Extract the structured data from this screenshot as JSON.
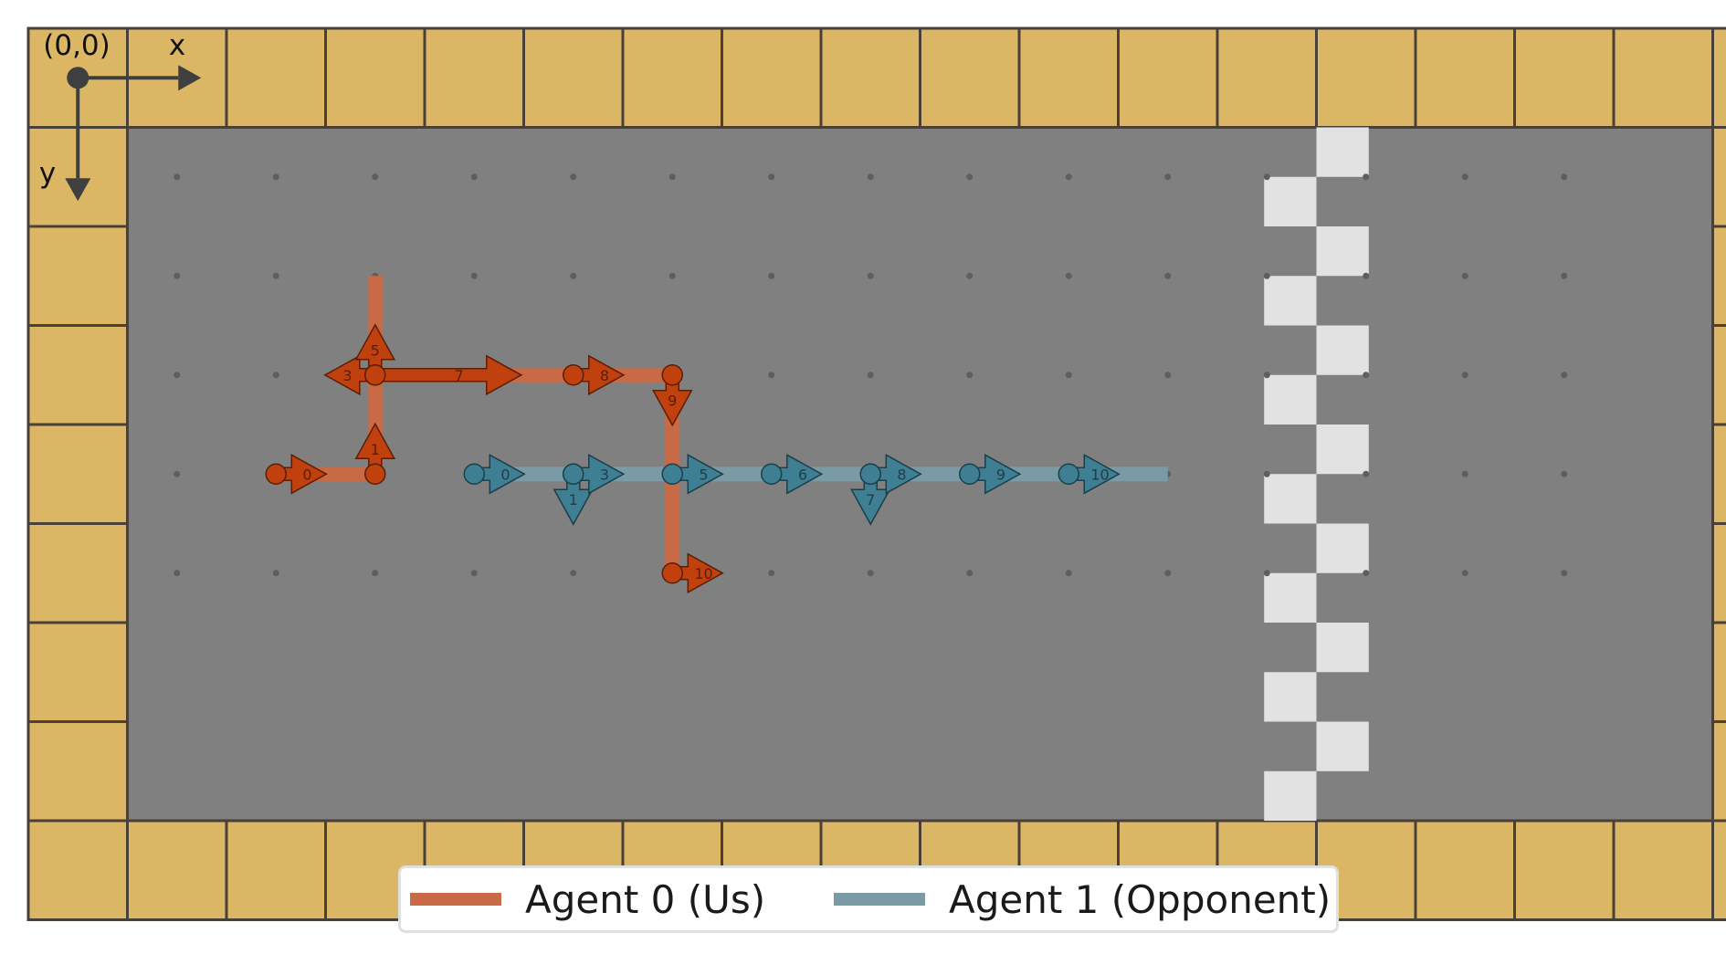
{
  "board": {
    "cols": 16,
    "rows": 7,
    "wall_color": "#dbb665",
    "floor_color": "#808080",
    "grid_line_color": "#4a4038",
    "dot_color": "#5e5e5e",
    "finish_color": "#e2e2e2",
    "finish_column": 12
  },
  "origin": {
    "label": "(0,0)",
    "x_label": "x",
    "y_label": "y"
  },
  "agents": [
    {
      "name": "Agent 0 (Us)",
      "line_color": "#c86a45",
      "marker_color": "#c0410d",
      "edge_color": "#5a1e06",
      "path": [
        [
          1,
          3
        ],
        [
          2,
          3
        ],
        [
          2,
          2
        ],
        [
          3,
          1.6
        ],
        [
          2,
          2
        ],
        [
          2,
          1
        ],
        [
          3,
          2
        ],
        [
          4,
          2
        ],
        [
          5,
          2
        ],
        [
          5,
          3
        ],
        [
          5,
          4
        ]
      ],
      "steps": [
        {
          "x": 1,
          "y": 3,
          "dir": "right",
          "label": "0"
        },
        {
          "x": 2,
          "y": 3,
          "dir": "up",
          "label": "1"
        },
        {
          "x": 2,
          "y": 2,
          "dir": "left",
          "label": "3"
        },
        {
          "x": 2,
          "y": 2,
          "dir": "up",
          "label": "5"
        },
        {
          "x": 2,
          "y": 2,
          "dir": "right",
          "label": "7"
        },
        {
          "x": 4,
          "y": 2,
          "dir": "right",
          "label": "8"
        },
        {
          "x": 5,
          "y": 2,
          "dir": "down",
          "label": "9"
        },
        {
          "x": 5,
          "y": 4,
          "dir": "right",
          "label": "10"
        }
      ]
    },
    {
      "name": "Agent 1 (Opponent)",
      "line_color": "#7a9ba6",
      "marker_color": "#3f7f93",
      "edge_color": "#1d3e48",
      "path": [
        [
          3,
          3
        ],
        [
          4,
          3
        ],
        [
          5,
          3
        ],
        [
          6,
          3
        ],
        [
          7,
          3
        ],
        [
          8,
          3
        ],
        [
          9,
          3
        ],
        [
          10,
          3
        ]
      ],
      "steps": [
        {
          "x": 3,
          "y": 3,
          "dir": "right",
          "label": "0"
        },
        {
          "x": 4,
          "y": 3,
          "dir": "down",
          "label": "1"
        },
        {
          "x": 4,
          "y": 3,
          "dir": "right",
          "label": "3"
        },
        {
          "x": 5,
          "y": 3,
          "dir": "right",
          "label": "5"
        },
        {
          "x": 6,
          "y": 3,
          "dir": "right",
          "label": "6"
        },
        {
          "x": 7,
          "y": 3,
          "dir": "down",
          "label": "7"
        },
        {
          "x": 7,
          "y": 3,
          "dir": "right",
          "label": "8"
        },
        {
          "x": 8,
          "y": 3,
          "dir": "right",
          "label": "9"
        },
        {
          "x": 9,
          "y": 3,
          "dir": "right",
          "label": "10"
        }
      ]
    }
  ],
  "legend": {
    "items": [
      {
        "label": "Agent 0 (Us)",
        "color": "#c86a45"
      },
      {
        "label": "Agent 1 (Opponent)",
        "color": "#7a9ba6"
      }
    ]
  }
}
